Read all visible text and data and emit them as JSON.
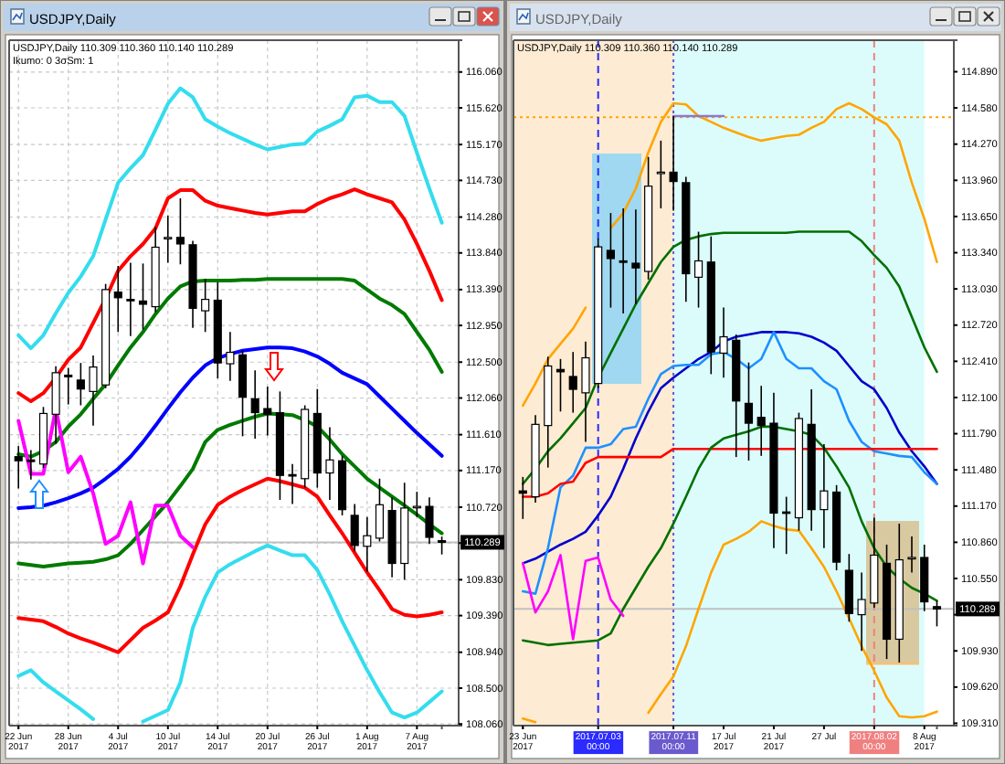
{
  "chart_data": [
    {
      "type": "candlestick",
      "title": "USDJPY,Daily",
      "subtitle": "USDJPY,Daily  110.309 110.360 110.140 110.289",
      "annotations": [
        "Ikumo: 0 3σSm: 1"
      ],
      "categories": [
        "22 Jun 2017",
        null,
        null,
        null,
        "28 Jun 2017",
        null,
        null,
        null,
        "4 Jul 2017",
        null,
        null,
        null,
        "10 Jul 2017",
        null,
        null,
        null,
        "14 Jul 2017",
        null,
        null,
        null,
        "20 Jul 2017",
        null,
        null,
        null,
        "26 Jul 2017",
        null,
        null,
        null,
        "1 Aug 2017",
        null,
        null,
        null,
        "7 Aug 2017",
        null,
        null
      ],
      "ohlc": [
        [
          111.34,
          111.47,
          110.95,
          111.29
        ],
        [
          111.3,
          111.42,
          111.06,
          111.28
        ],
        [
          111.25,
          111.95,
          111.2,
          111.87
        ],
        [
          111.86,
          112.45,
          111.5,
          112.37
        ],
        [
          112.34,
          112.43,
          111.98,
          112.32
        ],
        [
          112.28,
          112.49,
          111.97,
          112.17
        ],
        [
          112.14,
          112.58,
          111.72,
          112.44
        ],
        [
          112.22,
          113.46,
          112.18,
          113.39
        ],
        [
          113.36,
          113.68,
          112.87,
          113.29
        ],
        [
          113.27,
          113.72,
          112.82,
          113.26
        ],
        [
          113.25,
          113.71,
          112.9,
          113.21
        ],
        [
          113.18,
          114.16,
          113.11,
          113.91
        ],
        [
          114.02,
          114.3,
          113.72,
          114.03
        ],
        [
          114.03,
          114.51,
          113.7,
          113.95
        ],
        [
          113.94,
          113.99,
          112.92,
          113.16
        ],
        [
          113.13,
          113.52,
          112.87,
          113.27
        ],
        [
          113.26,
          113.48,
          112.3,
          112.49
        ],
        [
          112.48,
          112.87,
          112.27,
          112.62
        ],
        [
          112.59,
          112.64,
          111.59,
          112.07
        ],
        [
          112.05,
          112.4,
          111.56,
          111.88
        ],
        [
          111.93,
          112.2,
          111.6,
          111.86
        ],
        [
          111.88,
          112.14,
          110.81,
          111.11
        ],
        [
          111.12,
          111.25,
          110.76,
          111.11
        ],
        [
          111.07,
          111.97,
          110.96,
          111.92
        ],
        [
          111.87,
          112.17,
          110.96,
          111.14
        ],
        [
          111.14,
          111.7,
          110.81,
          111.3
        ],
        [
          111.29,
          111.35,
          110.62,
          110.69
        ],
        [
          110.62,
          110.76,
          110.18,
          110.25
        ],
        [
          110.24,
          110.6,
          109.93,
          110.37
        ],
        [
          110.34,
          111.07,
          110.3,
          110.75
        ],
        [
          110.68,
          110.84,
          109.86,
          110.03
        ],
        [
          110.03,
          111.02,
          109.83,
          110.71
        ],
        [
          110.72,
          110.91,
          110.6,
          110.73
        ],
        [
          110.73,
          110.84,
          110.27,
          110.35
        ],
        [
          110.309,
          110.36,
          110.14,
          110.289
        ]
      ],
      "series": [
        {
          "type": "line",
          "color": "#33ddee",
          "values": [
            112.83,
            112.67,
            112.83,
            113.1,
            113.35,
            113.55,
            113.8,
            114.25,
            114.7,
            114.88,
            115.04,
            115.35,
            115.67,
            115.86,
            115.75,
            115.48,
            115.39,
            115.31,
            115.24,
            115.17,
            115.11,
            115.14,
            115.17,
            115.18,
            115.33,
            115.4,
            115.48,
            115.75,
            115.77,
            115.69,
            115.69,
            115.52,
            115.07,
            114.63,
            114.21
          ]
        },
        {
          "type": "line",
          "color": "#ff0000",
          "values": [
            112.12,
            112.02,
            112.12,
            112.31,
            112.53,
            112.68,
            112.98,
            113.28,
            113.62,
            113.8,
            113.95,
            114.14,
            114.51,
            114.61,
            114.61,
            114.48,
            114.42,
            114.39,
            114.36,
            114.33,
            114.31,
            114.33,
            114.35,
            114.35,
            114.44,
            114.51,
            114.56,
            114.62,
            114.56,
            114.51,
            114.46,
            114.25,
            113.95,
            113.62,
            113.26
          ]
        },
        {
          "type": "line",
          "color": "#007a00",
          "values": [
            111.37,
            111.34,
            111.41,
            111.52,
            111.71,
            111.86,
            112.05,
            112.23,
            112.46,
            112.68,
            112.87,
            113.09,
            113.28,
            113.43,
            113.49,
            113.5,
            113.5,
            113.5,
            113.51,
            113.51,
            113.52,
            113.52,
            113.52,
            113.52,
            113.52,
            113.52,
            113.52,
            113.5,
            113.39,
            113.28,
            113.2,
            113.09,
            112.87,
            112.65,
            112.38
          ]
        },
        {
          "type": "line",
          "color": "#0000ff",
          "values": [
            110.71,
            110.72,
            110.74,
            110.78,
            110.83,
            110.89,
            110.96,
            111.07,
            111.19,
            111.34,
            111.52,
            111.72,
            111.93,
            112.13,
            112.31,
            112.46,
            112.55,
            112.6,
            112.64,
            112.66,
            112.68,
            112.68,
            112.67,
            112.63,
            112.57,
            112.48,
            112.37,
            112.3,
            112.23,
            112.08,
            111.93,
            111.78,
            111.63,
            111.49,
            111.35
          ]
        },
        {
          "type": "line",
          "color": "#007a00",
          "values": [
            110.03,
            110.01,
            109.99,
            110.01,
            110.03,
            110.04,
            110.05,
            110.08,
            110.13,
            110.27,
            110.44,
            110.61,
            110.78,
            110.98,
            111.19,
            111.52,
            111.67,
            111.73,
            111.78,
            111.83,
            111.87,
            111.86,
            111.85,
            111.79,
            111.71,
            111.55,
            111.37,
            111.22,
            111.07,
            110.96,
            110.85,
            110.74,
            110.63,
            110.51,
            110.4
          ]
        },
        {
          "type": "line",
          "color": "#ff0000",
          "values": [
            109.36,
            109.34,
            109.32,
            109.25,
            109.17,
            109.11,
            109.06,
            109.0,
            108.94,
            109.09,
            109.24,
            109.33,
            109.43,
            109.75,
            110.14,
            110.51,
            110.75,
            110.85,
            110.93,
            111.0,
            111.07,
            111.04,
            111.0,
            110.96,
            110.85,
            110.62,
            110.4,
            110.16,
            109.92,
            109.7,
            109.47,
            109.4,
            109.38,
            109.4,
            109.43
          ]
        },
        {
          "type": "line",
          "color": "#33ddee",
          "values": [
            108.65,
            108.72,
            108.57,
            108.46,
            108.35,
            108.24,
            108.12,
            null,
            null,
            null,
            108.09,
            108.16,
            108.23,
            108.57,
            109.24,
            109.62,
            109.92,
            110.02,
            110.1,
            110.18,
            110.25,
            110.19,
            110.13,
            110.13,
            109.95,
            109.65,
            109.32,
            109.02,
            108.72,
            108.45,
            108.2,
            108.14,
            108.2,
            108.33,
            108.46
          ]
        },
        {
          "type": "line",
          "color": "#ff00ff",
          "values": [
            111.78,
            111.13,
            111.13,
            111.93,
            111.15,
            111.34,
            110.89,
            110.27,
            110.37,
            110.78,
            110.03,
            110.74,
            110.74,
            110.37,
            110.23,
            null,
            null,
            null,
            null,
            null,
            null,
            null,
            null,
            null,
            null,
            null,
            null,
            null,
            null,
            null,
            null,
            null,
            null,
            null,
            null
          ]
        }
      ],
      "ylim": [
        108.04,
        116.45
      ],
      "yticks": [
        {
          "value": 116.06,
          "label": "116.060"
        },
        {
          "value": 115.62,
          "label": "115.620"
        },
        {
          "value": 115.17,
          "label": "115.170"
        },
        {
          "value": 114.73,
          "label": "114.730"
        },
        {
          "value": 114.28,
          "label": "114.280"
        },
        {
          "value": 113.84,
          "label": "113.840"
        },
        {
          "value": 113.39,
          "label": "113.390"
        },
        {
          "value": 112.95,
          "label": "112.950"
        },
        {
          "value": 112.5,
          "label": "112.500"
        },
        {
          "value": 112.06,
          "label": "112.060"
        },
        {
          "value": 111.61,
          "label": "111.610"
        },
        {
          "value": 111.17,
          "label": "111.170"
        },
        {
          "value": 110.72,
          "label": "110.720"
        },
        {
          "value": 110.28,
          "label": null
        },
        {
          "value": 109.83,
          "label": "109.830"
        },
        {
          "value": 109.39,
          "label": "109.390"
        },
        {
          "value": 108.94,
          "label": "108.940"
        },
        {
          "value": 108.5,
          "label": "108.500"
        },
        {
          "value": 108.06,
          "label": "108.060"
        }
      ],
      "grid": true,
      "ref_lines": [
        {
          "axis": "y",
          "value": 110.289,
          "label": "110.289",
          "color": "#c0c0c0"
        }
      ]
    },
    {
      "type": "candlestick",
      "title": "USDJPY,Daily",
      "subtitle": "USDJPY,Daily  110.309 110.360 110.140 110.289",
      "categories": [
        "23 Jun 2017",
        null,
        null,
        null,
        null,
        null,
        "2017.07.03 00:00",
        null,
        null,
        null,
        null,
        null,
        "2017.07.11 00:00",
        null,
        null,
        null,
        "17 Jul 2017",
        null,
        null,
        null,
        "21 Jul 2017",
        null,
        null,
        null,
        "27 Jul",
        null,
        null,
        null,
        "2017.08.02 00:00",
        null,
        null,
        null,
        "8 Aug 2017",
        null
      ],
      "ohlc": [
        [
          111.3,
          111.42,
          111.06,
          111.28
        ],
        [
          111.25,
          111.95,
          111.2,
          111.87
        ],
        [
          111.86,
          112.45,
          111.5,
          112.37
        ],
        [
          112.34,
          112.43,
          111.98,
          112.32
        ],
        [
          112.28,
          112.49,
          111.97,
          112.17
        ],
        [
          112.14,
          112.58,
          111.72,
          112.44
        ],
        [
          112.22,
          113.46,
          112.18,
          113.39
        ],
        [
          113.36,
          113.68,
          112.87,
          113.29
        ],
        [
          113.27,
          113.72,
          112.82,
          113.26
        ],
        [
          113.25,
          113.71,
          112.9,
          113.21
        ],
        [
          113.18,
          114.16,
          113.11,
          113.91
        ],
        [
          114.02,
          114.3,
          113.72,
          114.03
        ],
        [
          114.03,
          114.51,
          113.7,
          113.95
        ],
        [
          113.94,
          113.99,
          112.92,
          113.16
        ],
        [
          113.13,
          113.52,
          112.87,
          113.27
        ],
        [
          113.26,
          113.48,
          112.3,
          112.49
        ],
        [
          112.48,
          112.87,
          112.27,
          112.62
        ],
        [
          112.59,
          112.64,
          111.59,
          112.07
        ],
        [
          112.05,
          112.4,
          111.56,
          111.88
        ],
        [
          111.93,
          112.2,
          111.6,
          111.86
        ],
        [
          111.88,
          112.14,
          110.81,
          111.11
        ],
        [
          111.12,
          111.25,
          110.76,
          111.11
        ],
        [
          111.07,
          111.97,
          110.96,
          111.92
        ],
        [
          111.87,
          112.17,
          110.96,
          111.14
        ],
        [
          111.14,
          111.7,
          110.81,
          111.3
        ],
        [
          111.29,
          111.35,
          110.62,
          110.69
        ],
        [
          110.62,
          110.76,
          110.18,
          110.25
        ],
        [
          110.24,
          110.6,
          109.93,
          110.37
        ],
        [
          110.34,
          111.07,
          110.3,
          110.75
        ],
        [
          110.68,
          110.84,
          109.86,
          110.03
        ],
        [
          110.03,
          111.02,
          109.83,
          110.71
        ],
        [
          110.72,
          110.91,
          110.6,
          110.73
        ],
        [
          110.73,
          110.84,
          110.27,
          110.35
        ],
        [
          110.309,
          110.36,
          110.14,
          110.289
        ]
      ],
      "series": [
        {
          "type": "line",
          "color": "#ffa500",
          "values": [
            112.03,
            112.22,
            112.43,
            112.56,
            112.69,
            112.87,
            null,
            113.55,
            113.68,
            113.89,
            114.2,
            114.46,
            114.62,
            114.61,
            114.51,
            114.46,
            114.41,
            114.37,
            114.33,
            114.3,
            114.32,
            114.34,
            114.35,
            114.41,
            114.46,
            114.57,
            114.62,
            114.57,
            114.5,
            114.44,
            114.3,
            113.94,
            113.63,
            113.26
          ]
        },
        {
          "type": "line",
          "color": "#007000",
          "values": [
            111.36,
            111.49,
            111.64,
            111.75,
            111.88,
            112.01,
            112.27,
            112.48,
            112.69,
            112.9,
            113.08,
            113.26,
            113.39,
            113.45,
            113.48,
            113.5,
            113.51,
            113.51,
            113.51,
            113.51,
            113.51,
            113.51,
            113.52,
            113.52,
            113.52,
            113.52,
            113.52,
            113.44,
            113.32,
            113.21,
            113.05,
            112.79,
            112.53,
            112.32
          ]
        },
        {
          "type": "line",
          "color": "#0000cc",
          "values": [
            110.68,
            110.72,
            110.78,
            110.84,
            110.89,
            110.95,
            111.09,
            111.25,
            111.49,
            111.75,
            111.98,
            112.18,
            112.27,
            112.35,
            112.43,
            112.49,
            112.58,
            112.62,
            112.64,
            112.66,
            112.66,
            112.66,
            112.65,
            112.62,
            112.57,
            112.5,
            112.37,
            112.24,
            112.17,
            112.01,
            111.8,
            111.64,
            111.51,
            111.36
          ]
        },
        {
          "type": "line",
          "color": "#1e90ff",
          "values": [
            110.44,
            110.42,
            110.81,
            111.33,
            111.43,
            111.67,
            111.67,
            111.7,
            111.83,
            111.85,
            112.09,
            112.3,
            112.37,
            112.38,
            112.38,
            112.47,
            112.49,
            112.43,
            112.35,
            112.43,
            112.66,
            112.43,
            112.35,
            112.35,
            112.24,
            112.17,
            111.9,
            111.72,
            111.64,
            111.62,
            111.6,
            111.59,
            111.46,
            111.36
          ]
        },
        {
          "type": "line",
          "color": "#ff0000",
          "values": [
            111.25,
            111.25,
            111.28,
            111.36,
            111.38,
            111.54,
            111.59,
            111.59,
            111.59,
            111.59,
            111.59,
            111.59,
            111.66,
            111.66,
            111.66,
            111.66,
            111.66,
            111.66,
            111.66,
            111.66,
            111.66,
            111.66,
            111.66,
            111.66,
            111.66,
            111.66,
            111.66,
            111.66,
            111.66,
            111.66,
            111.66,
            111.66,
            111.66,
            111.66
          ]
        },
        {
          "type": "line",
          "color": "#007000",
          "values": [
            110.02,
            110.0,
            109.98,
            109.99,
            110.0,
            110.01,
            110.02,
            110.08,
            110.29,
            110.47,
            110.65,
            110.81,
            111.02,
            111.25,
            111.49,
            111.67,
            111.75,
            111.78,
            111.81,
            111.85,
            111.85,
            111.83,
            111.81,
            111.78,
            111.67,
            111.51,
            111.33,
            111.04,
            110.81,
            110.65,
            110.55,
            110.47,
            110.42,
            110.36
          ]
        },
        {
          "type": "line",
          "color": "#ffa500",
          "values": [
            109.35,
            109.32,
            null,
            null,
            null,
            null,
            null,
            null,
            null,
            null,
            109.4,
            109.56,
            109.71,
            109.97,
            110.29,
            110.6,
            110.84,
            110.89,
            110.95,
            111.04,
            111.0,
            110.97,
            110.96,
            110.81,
            110.65,
            110.44,
            110.21,
            109.97,
            109.76,
            109.53,
            109.37,
            109.36,
            109.37,
            109.41
          ]
        },
        {
          "type": "line",
          "color": "#ff00ff",
          "values": [
            110.68,
            110.26,
            110.44,
            110.75,
            110.03,
            110.7,
            110.73,
            110.37,
            110.23,
            null,
            null,
            null,
            null,
            null,
            null,
            null,
            null,
            null,
            null,
            null,
            null,
            null,
            null,
            null,
            null,
            null,
            null,
            null,
            null,
            null,
            null,
            null,
            null,
            null
          ]
        },
        {
          "type": "line",
          "color": "#8878d8",
          "values": [
            null,
            null,
            null,
            null,
            null,
            null,
            null,
            null,
            null,
            null,
            null,
            null,
            114.51,
            114.51,
            114.51,
            114.51,
            114.51,
            null,
            null,
            null,
            null,
            null,
            null,
            null,
            null,
            null,
            null,
            null,
            null,
            null,
            null,
            null,
            null,
            null
          ]
        }
      ],
      "ylim": [
        109.29,
        115.16
      ],
      "yticks": [
        {
          "value": 114.89,
          "label": "114.890"
        },
        {
          "value": 114.58,
          "label": "114.580"
        },
        {
          "value": 114.27,
          "label": "114.270"
        },
        {
          "value": 113.96,
          "label": "113.960"
        },
        {
          "value": 113.65,
          "label": "113.650"
        },
        {
          "value": 113.34,
          "label": "113.340"
        },
        {
          "value": 113.03,
          "label": "113.030"
        },
        {
          "value": 112.72,
          "label": "112.720"
        },
        {
          "value": 112.41,
          "label": "112.410"
        },
        {
          "value": 112.1,
          "label": "112.100"
        },
        {
          "value": 111.79,
          "label": "111.790"
        },
        {
          "value": 111.48,
          "label": "111.480"
        },
        {
          "value": 111.17,
          "label": "111.170"
        },
        {
          "value": 110.86,
          "label": "110.860"
        },
        {
          "value": 110.55,
          "label": "110.550"
        },
        {
          "value": 110.24,
          "label": null
        },
        {
          "value": 109.93,
          "label": "109.930"
        },
        {
          "value": 109.62,
          "label": "109.620"
        },
        {
          "value": 109.31,
          "label": "109.310"
        }
      ],
      "bands": [
        {
          "axis": "x",
          "from": "23 Jun 2017",
          "to": "2017.07.11 00:00",
          "color": "#fdebd3"
        },
        {
          "axis": "x",
          "from": "2017.07.11 00:00",
          "to": "8 Aug 2017",
          "color": "#dcfcfc"
        }
      ],
      "ref_lines": [
        {
          "axis": "y",
          "value": 110.289,
          "label": "110.289",
          "color": "#c0c0c0"
        },
        {
          "axis": "y",
          "value": 114.5,
          "color": "#ffa500",
          "line_style": "dotted"
        },
        {
          "axis": "x",
          "value": "2017.07.03 00:00",
          "color": "#2b2bff",
          "line_style": "dashed"
        },
        {
          "axis": "x",
          "value": "2017.07.11 00:00",
          "color": "#6a5acd",
          "line_style": "dotted"
        },
        {
          "axis": "x",
          "value": "2017.08.02 00:00",
          "color": "#f08080",
          "line_style": "dashed"
        }
      ]
    }
  ]
}
